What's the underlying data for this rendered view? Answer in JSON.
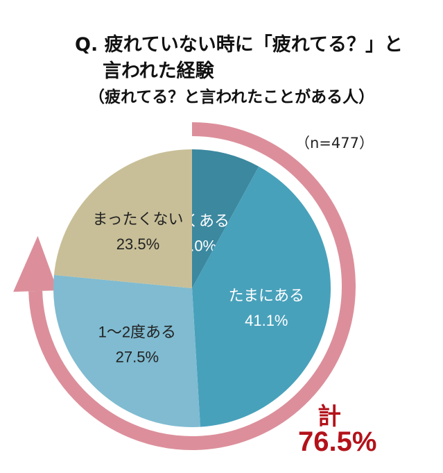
{
  "title": {
    "line1": "Q. 疲れていない時に「疲れてる？」と",
    "line2": "言われた経験",
    "line3": "（疲れてる？と言われたことがある人）"
  },
  "sample": "（n=477）",
  "total": {
    "label": "計",
    "value": "76.5%"
  },
  "chart_data": {
    "type": "pie",
    "title": "Q. 疲れていない時に「疲れてる？」と言われた経験（疲れてる？と言われたことがある人）",
    "start": "top",
    "direction": "clockwise",
    "slices": [
      {
        "label": "よくある",
        "value": 8.0,
        "text": "8.0%",
        "color": "#3b889f",
        "text_color": "#ffffff"
      },
      {
        "label": "たまにある",
        "value": 41.1,
        "text": "41.1%",
        "color": "#48a1bb",
        "text_color": "#ffffff"
      },
      {
        "label": "1～2度ある",
        "value": 27.5,
        "text": "27.5%",
        "color": "#80bbd1",
        "text_color": "#222222"
      },
      {
        "label": "まったくない",
        "value": 23.5,
        "text": "23.5%",
        "color": "#c8bf98",
        "text_color": "#222222"
      }
    ],
    "highlight_arc": {
      "covers_percent": 76.5,
      "color": "#dc8f9b"
    }
  }
}
